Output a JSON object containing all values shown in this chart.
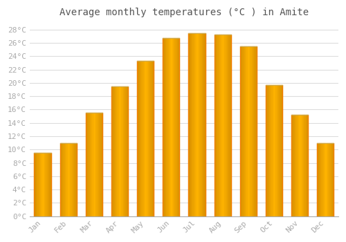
{
  "title": "Average monthly temperatures (°C ) in Amite",
  "months": [
    "Jan",
    "Feb",
    "Mar",
    "Apr",
    "May",
    "Jun",
    "Jul",
    "Aug",
    "Sep",
    "Oct",
    "Nov",
    "Dec"
  ],
  "values": [
    9.5,
    11.0,
    15.5,
    19.5,
    23.3,
    26.7,
    27.5,
    27.3,
    25.5,
    19.7,
    15.2,
    11.0
  ],
  "bar_color_main": "#FFA726",
  "bar_color_edge": "#F57C00",
  "background_color": "#ffffff",
  "plot_bg_color": "#ffffff",
  "grid_color": "#dddddd",
  "tick_color": "#aaaaaa",
  "title_color": "#555555",
  "ylim": [
    0,
    29
  ],
  "ytick_step": 2,
  "title_fontsize": 10,
  "tick_fontsize": 8,
  "font_family": "monospace"
}
